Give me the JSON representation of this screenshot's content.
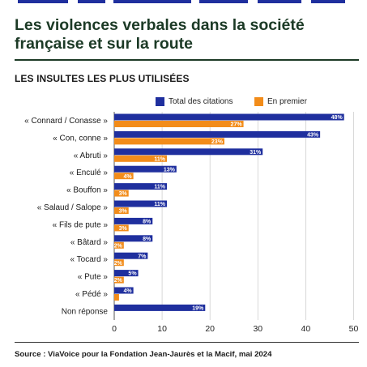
{
  "header": {
    "title": "Les violences verbales dans la société française et sur la route"
  },
  "chart_data": {
    "type": "bar",
    "orientation": "horizontal",
    "title": "LES INSULTES LES PLUS UTILISÉES",
    "categories": [
      "« Connard / Conasse »",
      "« Con, conne »",
      "« Abruti »",
      "« Enculé »",
      "« Bouffon »",
      "« Salaud / Salope »",
      "« Fils de pute »",
      "« Bâtard »",
      "« Tocard »",
      "« Pute »",
      "« Pédé »",
      "Non réponse"
    ],
    "series": [
      {
        "name": "Total des citations",
        "color": "#1f2f9e",
        "values": [
          48,
          43,
          31,
          13,
          11,
          11,
          8,
          8,
          7,
          5,
          4,
          19
        ],
        "labels": [
          "48%",
          "43%",
          "31%",
          "13%",
          "11%",
          "11%",
          "8%",
          "8%",
          "7%",
          "5%",
          "4%",
          "19%"
        ]
      },
      {
        "name": "En premier",
        "color": "#f28c1a",
        "values": [
          27,
          23,
          11,
          4,
          3,
          3,
          3,
          2,
          2,
          2,
          1,
          null
        ],
        "labels": [
          "27%",
          "23%",
          "11%",
          "4%",
          "3%",
          "3%",
          "3%",
          "2%",
          "2%",
          "2%",
          "",
          ""
        ]
      }
    ],
    "xlim": [
      0,
      50
    ],
    "xticks": [
      "0",
      "10",
      "20",
      "30",
      "40",
      "50"
    ],
    "xlabel": "",
    "ylabel": "",
    "legend": "top-right",
    "grid": true
  },
  "footer": {
    "source": "Source : ViaVoice pour la Fondation Jean-Jaurès et la Macif, mai 2024"
  }
}
